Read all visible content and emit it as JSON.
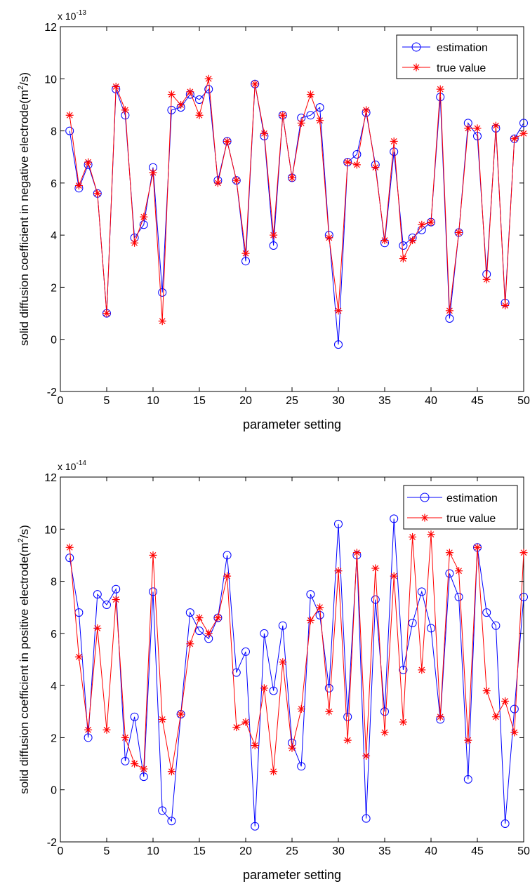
{
  "chart_data": [
    {
      "type": "line",
      "ylabel": "solid diffusion coefficient in negative electrode(m²/s)",
      "ylabel_parts": [
        "solid diffusion coefficient in negative electrode(m",
        "2",
        "/s)"
      ],
      "xlabel": "parameter setting",
      "exponent_label": "x 10",
      "exponent": "-13",
      "xlim": [
        0,
        50
      ],
      "ylim": [
        -2,
        12
      ],
      "xticks": [
        0,
        5,
        10,
        15,
        20,
        25,
        30,
        35,
        40,
        45,
        50
      ],
      "yticks": [
        -2,
        0,
        2,
        4,
        6,
        8,
        10,
        12
      ],
      "grid": false,
      "legend": "top-right",
      "x": [
        1,
        2,
        3,
        4,
        5,
        6,
        7,
        8,
        9,
        10,
        11,
        12,
        13,
        14,
        15,
        16,
        17,
        18,
        19,
        20,
        21,
        22,
        23,
        24,
        25,
        26,
        27,
        28,
        29,
        30,
        31,
        32,
        33,
        34,
        35,
        36,
        37,
        38,
        39,
        40,
        41,
        42,
        43,
        44,
        45,
        46,
        47,
        48,
        49,
        50
      ],
      "series": [
        {
          "name": "estimation",
          "color": "#0000ff",
          "marker": "circle",
          "values": [
            8.0,
            5.8,
            6.7,
            5.6,
            1.0,
            9.6,
            8.6,
            3.9,
            4.4,
            6.6,
            1.8,
            8.8,
            8.9,
            9.4,
            9.2,
            9.6,
            6.1,
            7.6,
            6.1,
            3.0,
            9.8,
            7.8,
            3.6,
            8.6,
            6.2,
            8.5,
            8.6,
            8.9,
            4.0,
            -0.2,
            6.8,
            7.1,
            8.7,
            6.7,
            3.7,
            7.2,
            3.6,
            3.9,
            4.2,
            4.5,
            9.3,
            0.8,
            4.1,
            8.3,
            7.8,
            2.5,
            8.1,
            1.4,
            7.7,
            8.3
          ]
        },
        {
          "name": "true value",
          "color": "#ff0000",
          "marker": "star",
          "values": [
            8.6,
            5.9,
            6.8,
            5.6,
            1.0,
            9.7,
            8.8,
            3.7,
            4.7,
            6.4,
            0.7,
            9.4,
            9.0,
            9.5,
            8.6,
            10.0,
            6.0,
            7.6,
            6.1,
            3.3,
            9.8,
            7.9,
            4.0,
            8.6,
            6.2,
            8.3,
            9.4,
            8.4,
            3.9,
            1.1,
            6.8,
            6.7,
            8.8,
            6.6,
            3.8,
            7.6,
            3.1,
            3.8,
            4.4,
            4.5,
            9.6,
            1.1,
            4.1,
            8.1,
            8.1,
            2.3,
            8.2,
            1.3,
            7.7,
            7.9
          ]
        }
      ]
    },
    {
      "type": "line",
      "ylabel": "solid diffusion coefficient in positive electrode(m²/s)",
      "ylabel_parts": [
        "solid diffusion coefficient in positive electrode(m",
        "2",
        "/s)"
      ],
      "xlabel": "parameter setting",
      "exponent_label": "x 10",
      "exponent": "-14",
      "xlim": [
        0,
        50
      ],
      "ylim": [
        -2,
        12
      ],
      "xticks": [
        0,
        5,
        10,
        15,
        20,
        25,
        30,
        35,
        40,
        45,
        50
      ],
      "yticks": [
        -2,
        0,
        2,
        4,
        6,
        8,
        10,
        12
      ],
      "grid": false,
      "legend": "top-right",
      "x": [
        1,
        2,
        3,
        4,
        5,
        6,
        7,
        8,
        9,
        10,
        11,
        12,
        13,
        14,
        15,
        16,
        17,
        18,
        19,
        20,
        21,
        22,
        23,
        24,
        25,
        26,
        27,
        28,
        29,
        30,
        31,
        32,
        33,
        34,
        35,
        36,
        37,
        38,
        39,
        40,
        41,
        42,
        43,
        44,
        45,
        46,
        47,
        48,
        49,
        50
      ],
      "series": [
        {
          "name": "estimation",
          "color": "#0000ff",
          "marker": "circle",
          "values": [
            8.9,
            6.8,
            2.0,
            7.5,
            7.1,
            7.7,
            1.1,
            2.8,
            0.5,
            7.6,
            -0.8,
            -1.2,
            2.9,
            6.8,
            6.1,
            5.8,
            6.6,
            9.0,
            4.5,
            5.3,
            -1.4,
            6.0,
            3.8,
            6.3,
            1.8,
            0.9,
            7.5,
            6.7,
            3.9,
            10.2,
            2.8,
            9.0,
            -1.1,
            7.3,
            3.0,
            10.4,
            4.6,
            6.4,
            7.6,
            6.2,
            2.7,
            8.3,
            7.4,
            0.4,
            9.3,
            6.8,
            6.3,
            -1.3,
            3.1,
            7.4
          ]
        },
        {
          "name": "true value",
          "color": "#ff0000",
          "marker": "star",
          "values": [
            9.3,
            5.1,
            2.3,
            6.2,
            2.3,
            7.3,
            2.0,
            1.0,
            0.8,
            9.0,
            2.7,
            0.7,
            2.9,
            5.6,
            6.6,
            6.0,
            6.6,
            8.2,
            2.4,
            2.6,
            1.7,
            3.9,
            0.7,
            4.9,
            1.6,
            3.1,
            6.5,
            7.0,
            3.0,
            8.4,
            1.9,
            9.1,
            1.3,
            8.5,
            2.2,
            8.2,
            2.6,
            9.7,
            4.6,
            9.8,
            2.8,
            9.1,
            8.4,
            1.9,
            9.3,
            3.8,
            2.8,
            3.4,
            2.2,
            9.1
          ]
        }
      ]
    }
  ]
}
